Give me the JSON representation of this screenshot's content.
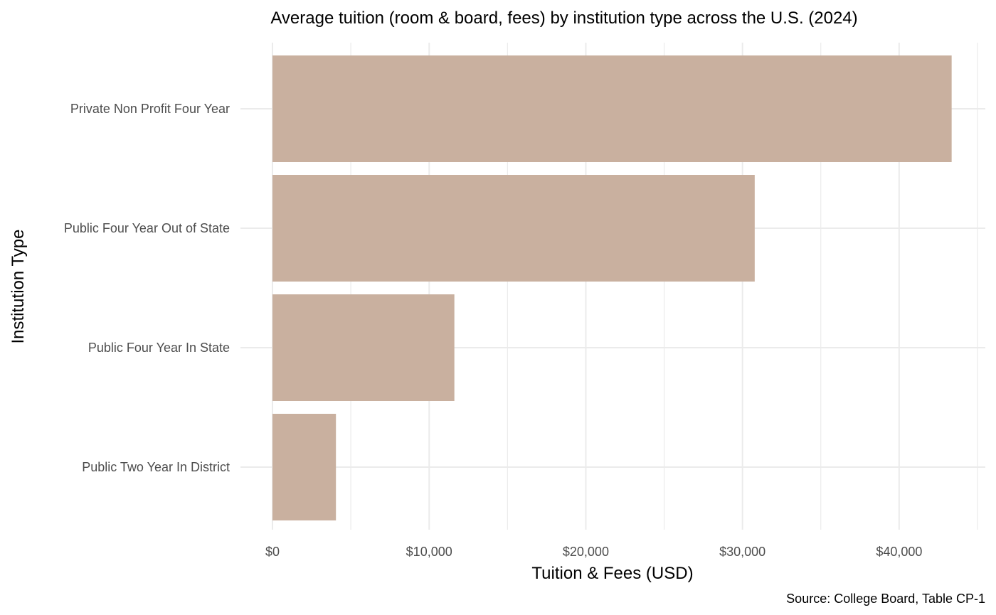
{
  "chart_data": {
    "type": "bar",
    "orientation": "horizontal",
    "title": "Average tuition (room & board, fees) by institution type across the U.S. (2024)",
    "xlabel": "Tuition & Fees (USD)",
    "ylabel": "Institution Type",
    "caption": "Source: College Board, Table CP-1",
    "categories": [
      "Private Non Profit Four Year",
      "Public Four Year Out of State",
      "Public Four Year In State",
      "Public Two Year In District"
    ],
    "values": [
      43350,
      30780,
      11610,
      4050
    ],
    "xlim": [
      0,
      45500
    ],
    "x_ticks": [
      0,
      10000,
      20000,
      30000,
      40000
    ],
    "x_tick_labels": [
      "$0",
      "$10,000",
      "$20,000",
      "$30,000",
      "$40,000"
    ],
    "grid": true,
    "legend": "none",
    "bar_color": "#c9b09f"
  }
}
